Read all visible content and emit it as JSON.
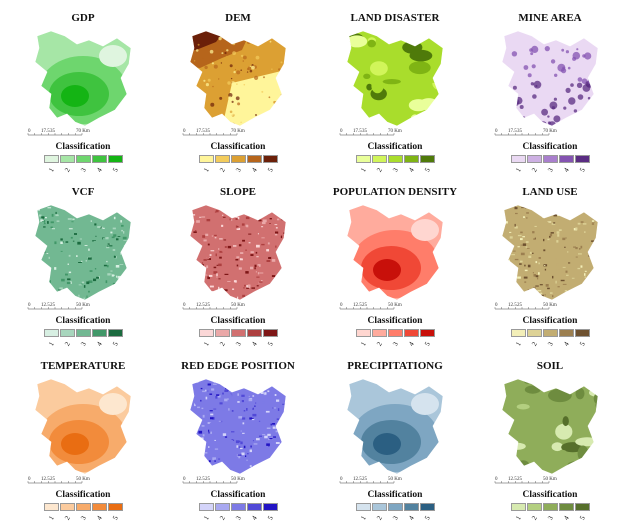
{
  "classification_label": "Classification",
  "class_ticks": [
    "1",
    "2",
    "3",
    "4",
    "5"
  ],
  "panels": [
    {
      "title": "GDP",
      "scale_labels": [
        "0",
        "17.5",
        "35",
        "70 Km"
      ],
      "colors": [
        "#dff5df",
        "#a6e6a6",
        "#6ed66e",
        "#3fc33f",
        "#14b414"
      ],
      "texture": "smooth"
    },
    {
      "title": "DEM",
      "scale_labels": [
        "0",
        "17.5",
        "35",
        "70 Km"
      ],
      "colors": [
        "#fff59a",
        "#f3cc5c",
        "#dca033",
        "#b6651b",
        "#6b2009"
      ],
      "texture": "terrain"
    },
    {
      "title": "LAND DISASTER",
      "scale_labels": [
        "0",
        "17.5",
        "35",
        "70 Km"
      ],
      "colors": [
        "#e9ff9a",
        "#d1f55a",
        "#a9dd2c",
        "#7fb414",
        "#4f7a0a"
      ],
      "texture": "patchy"
    },
    {
      "title": "MINE AREA",
      "scale_labels": [
        "0",
        "17.5",
        "35",
        "70 Km"
      ],
      "colors": [
        "#ead9f3",
        "#cdb0e3",
        "#a97fcd",
        "#8453b1",
        "#5a2c82"
      ],
      "texture": "dots"
    },
    {
      "title": "VCF",
      "scale_labels": [
        "0",
        "12.5",
        "25",
        "50 Km"
      ],
      "colors": [
        "#d7efe2",
        "#a8d6bd",
        "#72b892",
        "#419768",
        "#1b6b3f"
      ],
      "texture": "noise"
    },
    {
      "title": "SLOPE",
      "scale_labels": [
        "0",
        "12.5",
        "25",
        "50 Km"
      ],
      "colors": [
        "#fbd7d7",
        "#eaa8a8",
        "#d17070",
        "#ad3f3f",
        "#7e1616"
      ],
      "texture": "noise"
    },
    {
      "title": "POPULATION DENSITY",
      "scale_labels": [
        "0",
        "12.5",
        "25",
        "50 Km"
      ],
      "colors": [
        "#ffd6d0",
        "#ffab9d",
        "#ff7d6a",
        "#f04836",
        "#c8100a"
      ],
      "texture": "smooth"
    },
    {
      "title": "LAND USE",
      "scale_labels": [
        "0",
        "12.5",
        "25",
        "50 Km"
      ],
      "colors": [
        "#f3efb8",
        "#ddd296",
        "#c2ad72",
        "#9c7f50",
        "#6e5130"
      ],
      "texture": "noise"
    },
    {
      "title": "TEMPERATURE",
      "scale_labels": [
        "0",
        "12.5",
        "25",
        "50 Km"
      ],
      "colors": [
        "#fde7cf",
        "#fbcb9e",
        "#f7ab6b",
        "#f28b3b",
        "#e96d12"
      ],
      "texture": "smooth"
    },
    {
      "title": "RED EDGE POSITION",
      "scale_labels": [
        "0",
        "12.5",
        "25",
        "50 Km"
      ],
      "colors": [
        "#d4d4fa",
        "#a9a9f1",
        "#7d7ae6",
        "#5149d7",
        "#2214c4"
      ],
      "texture": "noise"
    },
    {
      "title": "PRECIPITATIONG",
      "scale_labels": [
        "0",
        "12.5",
        "25",
        "50 Km"
      ],
      "colors": [
        "#d5e3ee",
        "#aac6da",
        "#7ea6c2",
        "#52829f",
        "#2b5f82"
      ],
      "texture": "smooth"
    },
    {
      "title": "SOIL",
      "scale_labels": [
        "0",
        "12.5",
        "25",
        "50 Km"
      ],
      "colors": [
        "#d7eab0",
        "#b3cf80",
        "#8fad5a",
        "#6e8c3f",
        "#566f2b"
      ],
      "texture": "patchy"
    }
  ]
}
